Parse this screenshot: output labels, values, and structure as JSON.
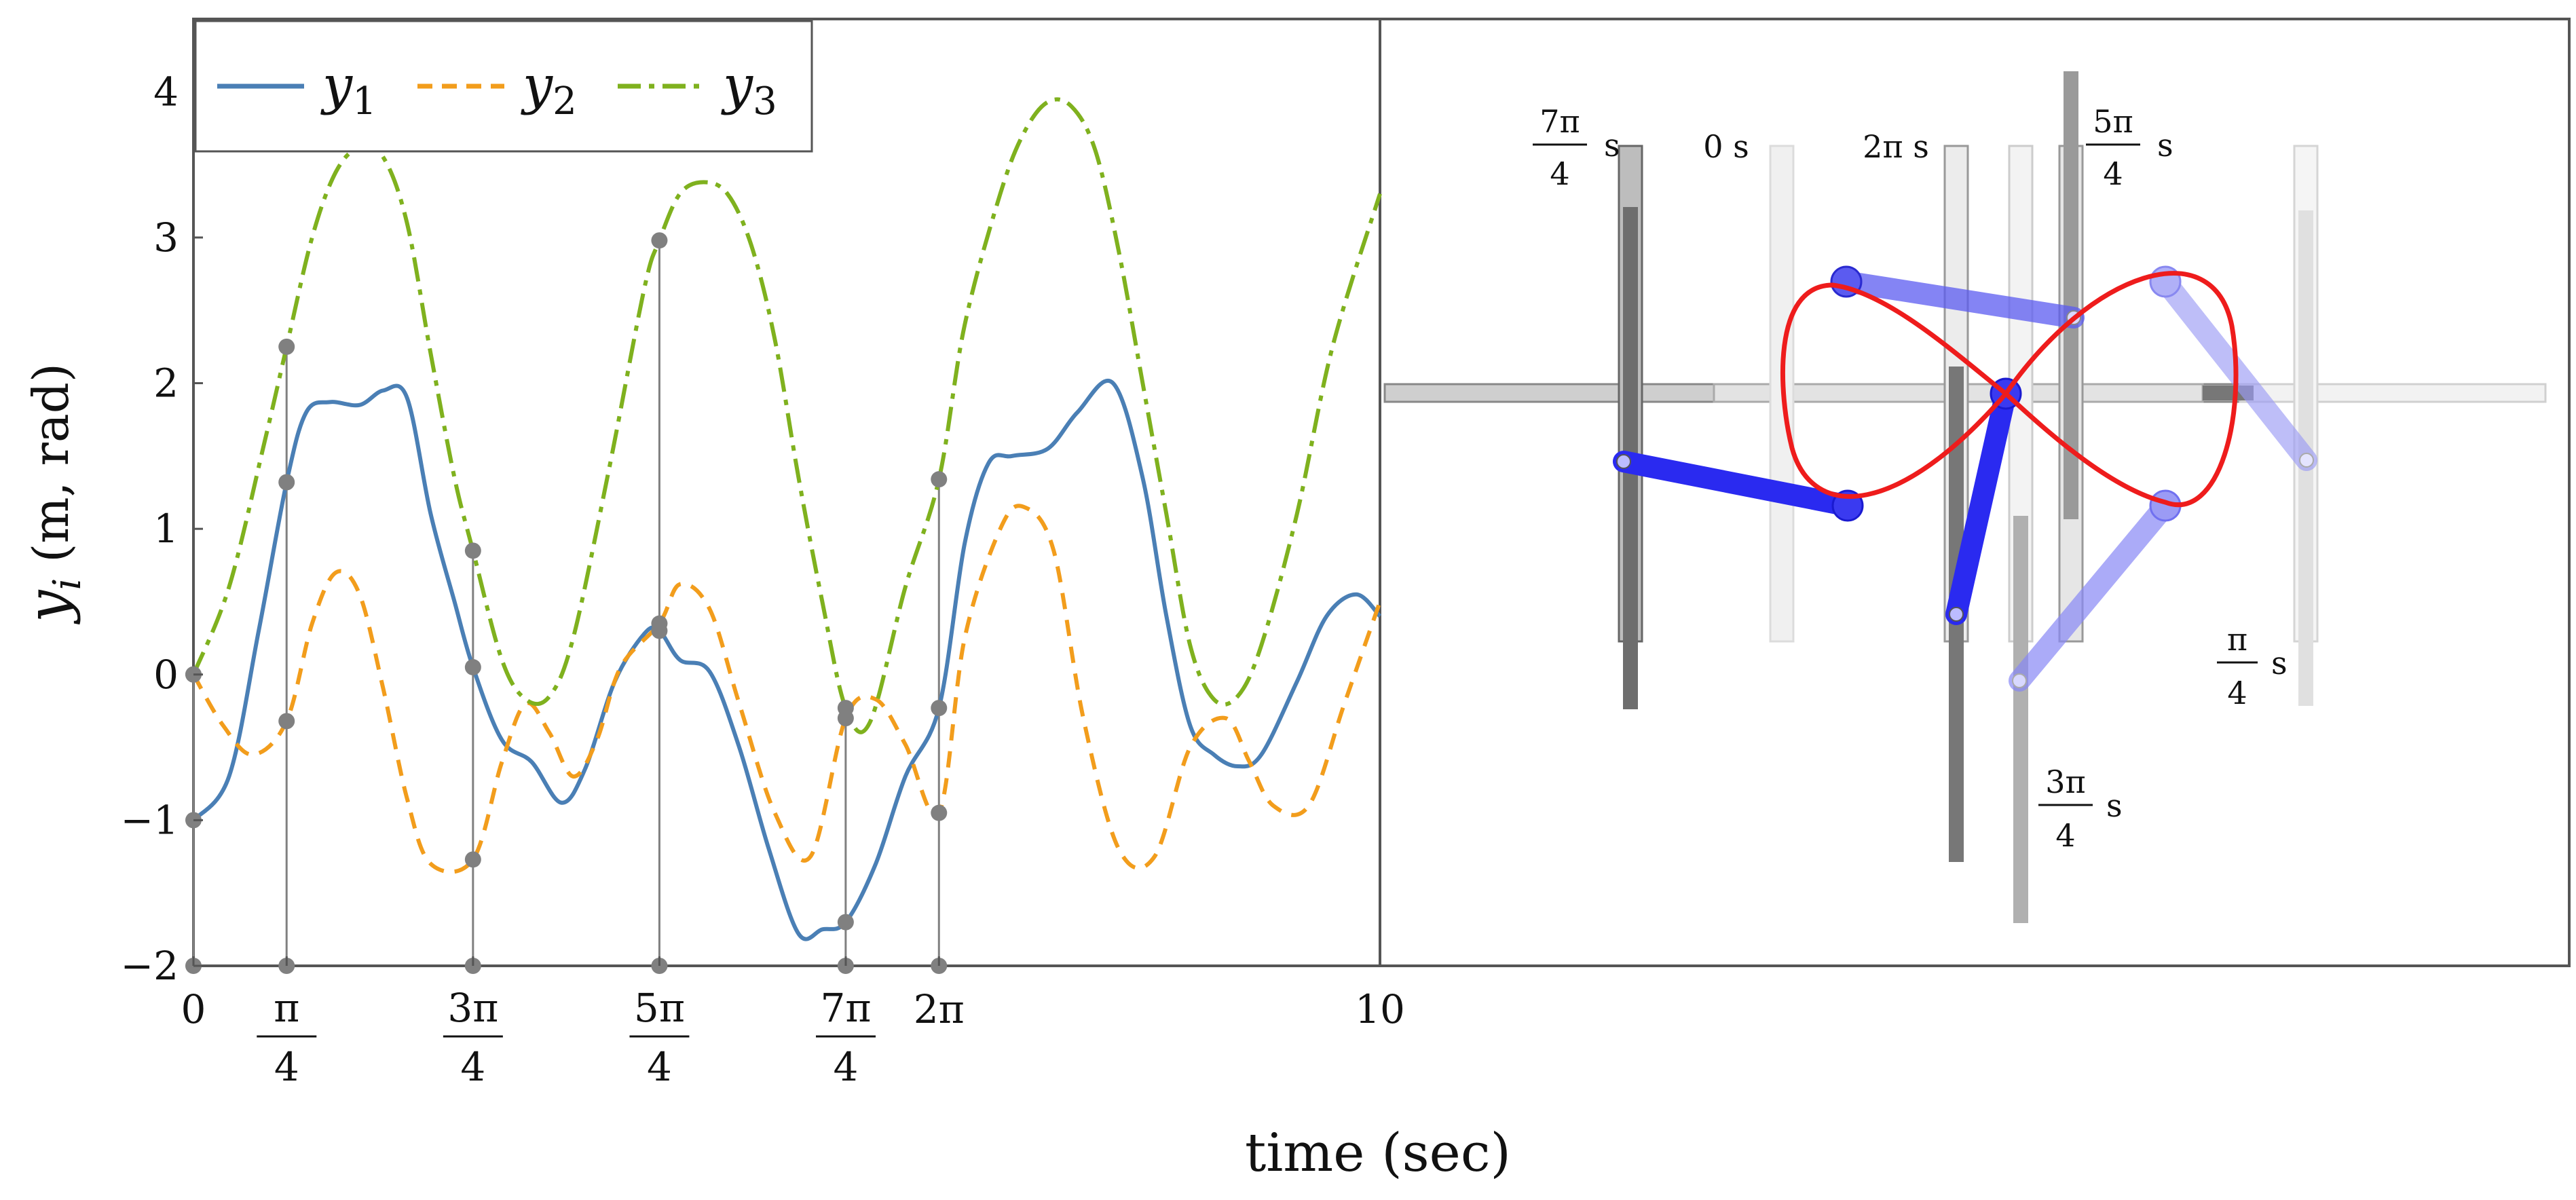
{
  "chart_data": [
    {
      "type": "line",
      "xlabel": "time (sec)",
      "ylabel_main": "y",
      "ylabel_sub": "i",
      "ylabel_rest": " (m, rad)",
      "xlim": [
        0,
        10
      ],
      "ylim": [
        -2,
        4.5
      ],
      "yticks": [
        "−2",
        "−1",
        "0",
        "1",
        "2",
        "3",
        "4"
      ],
      "xticks": [
        {
          "num": "0",
          "den": ""
        },
        {
          "num": "π",
          "den": "4"
        },
        {
          "num": "3π",
          "den": "4"
        },
        {
          "num": "5π",
          "den": "4"
        },
        {
          "num": "7π",
          "den": "4"
        },
        {
          "num": "2π",
          "den": ""
        },
        {
          "num": "10",
          "den": ""
        }
      ],
      "legend": {
        "position": "top-left",
        "entries": [
          {
            "main": "y",
            "sub": "1"
          },
          {
            "main": "y",
            "sub": "2"
          },
          {
            "main": "y",
            "sub": "3"
          }
        ]
      },
      "series": [
        {
          "name": "y1",
          "color": "#4a7fb5",
          "style": "solid",
          "x": [
            0,
            0.3,
            0.55,
            0.785,
            0.95,
            1.15,
            1.4,
            1.6,
            1.8,
            2.0,
            2.2,
            2.356,
            2.6,
            2.85,
            3.1,
            3.3,
            3.55,
            3.8,
            3.927,
            4.1,
            4.35,
            4.6,
            4.85,
            5.1,
            5.3,
            5.497,
            5.75,
            6.0,
            6.283,
            6.5,
            6.7,
            6.9,
            7.2,
            7.45,
            7.75,
            8.0,
            8.2,
            8.4,
            8.6,
            8.8,
            9.0,
            9.3,
            9.55,
            9.8,
            10.0
          ],
          "y": [
            -1.0,
            -0.7,
            0.3,
            1.32,
            1.8,
            1.87,
            1.85,
            1.95,
            1.9,
            1.1,
            0.5,
            0.05,
            -0.45,
            -0.6,
            -0.88,
            -0.65,
            -0.05,
            0.28,
            0.3,
            0.1,
            0.02,
            -0.5,
            -1.2,
            -1.78,
            -1.75,
            -1.7,
            -1.3,
            -0.7,
            -0.23,
            0.9,
            1.45,
            1.5,
            1.55,
            1.8,
            2.0,
            1.35,
            0.4,
            -0.35,
            -0.55,
            -0.63,
            -0.55,
            -0.05,
            0.4,
            0.55,
            0.4
          ]
        },
        {
          "name": "y2",
          "color": "#f29d1c",
          "style": "dashed",
          "x": [
            0,
            0.25,
            0.5,
            0.785,
            1.0,
            1.2,
            1.4,
            1.6,
            1.8,
            2.0,
            2.356,
            2.6,
            2.8,
            3.0,
            3.2,
            3.4,
            3.6,
            3.927,
            4.1,
            4.35,
            4.6,
            4.9,
            5.2,
            5.497,
            5.75,
            6.0,
            6.283,
            6.5,
            6.8,
            7.0,
            7.25,
            7.5,
            7.8,
            8.1,
            8.4,
            8.7,
            8.9,
            9.1,
            9.4,
            9.7,
            10.0
          ],
          "y": [
            0,
            -0.35,
            -0.55,
            -0.32,
            0.35,
            0.7,
            0.55,
            -0.1,
            -0.85,
            -1.3,
            -1.27,
            -0.6,
            -0.2,
            -0.4,
            -0.7,
            -0.45,
            0.05,
            0.35,
            0.62,
            0.45,
            -0.2,
            -0.95,
            -1.25,
            -0.3,
            -0.17,
            -0.48,
            -0.95,
            0.25,
            1.0,
            1.15,
            0.85,
            -0.3,
            -1.2,
            -1.25,
            -0.5,
            -0.3,
            -0.6,
            -0.9,
            -0.9,
            -0.2,
            0.5
          ]
        },
        {
          "name": "y3",
          "color": "#7fb11e",
          "style": "dashdot",
          "x": [
            0,
            0.3,
            0.6,
            0.785,
            1.0,
            1.2,
            1.4,
            1.6,
            1.8,
            2.0,
            2.2,
            2.356,
            2.6,
            2.8,
            3.0,
            3.2,
            3.5,
            3.8,
            3.927,
            4.1,
            4.3,
            4.5,
            4.7,
            4.9,
            5.1,
            5.3,
            5.497,
            5.7,
            6.0,
            6.283,
            6.5,
            6.8,
            7.0,
            7.2,
            7.4,
            7.6,
            7.8,
            8.0,
            8.2,
            8.4,
            8.6,
            8.8,
            9.0,
            9.3,
            9.6,
            10.0
          ],
          "y": [
            0,
            0.6,
            1.6,
            2.25,
            3.0,
            3.45,
            3.62,
            3.55,
            3.1,
            2.2,
            1.35,
            0.85,
            0.1,
            -0.17,
            -0.15,
            0.25,
            1.4,
            2.65,
            2.98,
            3.3,
            3.38,
            3.3,
            2.95,
            2.3,
            1.35,
            0.5,
            -0.23,
            -0.33,
            0.6,
            1.34,
            2.4,
            3.3,
            3.72,
            3.93,
            3.9,
            3.6,
            2.9,
            2.0,
            1.1,
            0.2,
            -0.17,
            -0.15,
            0.2,
            1.1,
            2.25,
            3.3
          ]
        }
      ],
      "markers": {
        "color": "#808080",
        "times": [
          0,
          0.785,
          2.356,
          3.927,
          5.497,
          6.283
        ]
      }
    },
    {
      "type": "other",
      "description_labels": [
        {
          "num": "7π",
          "den": "4",
          "unit": "s"
        },
        {
          "num": "0 s",
          "den": "",
          "unit": ""
        },
        {
          "num": "2π s",
          "den": "",
          "unit": ""
        },
        {
          "num": "5π",
          "den": "4",
          "unit": "s"
        },
        {
          "num": "π",
          "den": "4",
          "unit": "s"
        },
        {
          "num": "3π",
          "den": "4",
          "unit": "s"
        }
      ]
    }
  ]
}
